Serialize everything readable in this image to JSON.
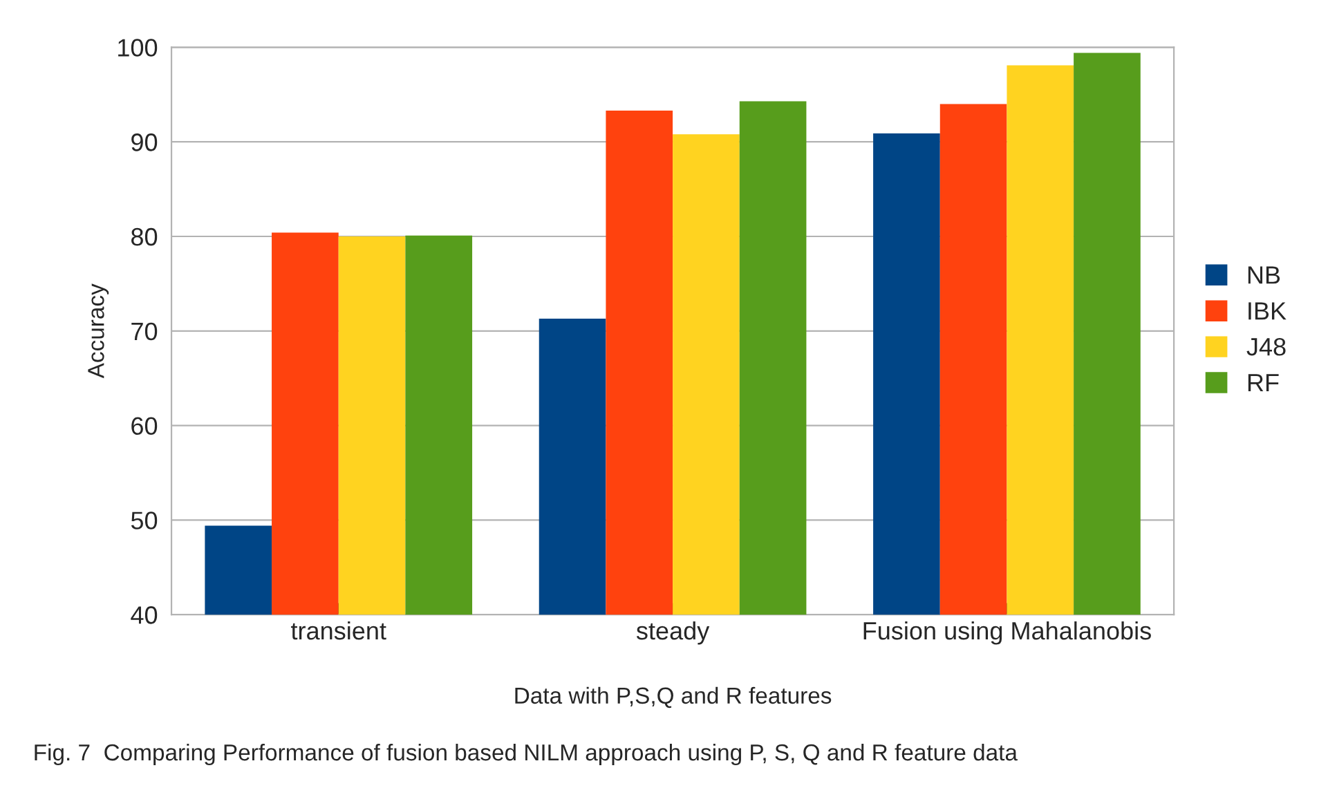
{
  "chart_data": {
    "type": "bar",
    "xlabel": "Data with P,S,Q and R features",
    "ylabel": "Accuracy",
    "categories": [
      "transient",
      "steady",
      "Fusion using Mahalanobis"
    ],
    "series": [
      {
        "name": "NB",
        "color": "#004586",
        "values": [
          49.4,
          71.3,
          90.9
        ]
      },
      {
        "name": "IBK",
        "color": "#ff420e",
        "values": [
          80.4,
          93.3,
          94.0
        ]
      },
      {
        "name": "J48",
        "color": "#ffd320",
        "values": [
          80.0,
          90.8,
          98.1
        ]
      },
      {
        "name": "RF",
        "color": "#579d1c",
        "values": [
          80.1,
          94.3,
          99.4
        ]
      }
    ],
    "ylim": [
      40,
      100
    ],
    "yticks": [
      40,
      50,
      60,
      70,
      80,
      90,
      100
    ],
    "grid": "y",
    "legend": "right",
    "annotations": [
      "Fig. 7  Comparing Performance of fusion based NILM approach using P, S, Q and R feature data"
    ]
  }
}
